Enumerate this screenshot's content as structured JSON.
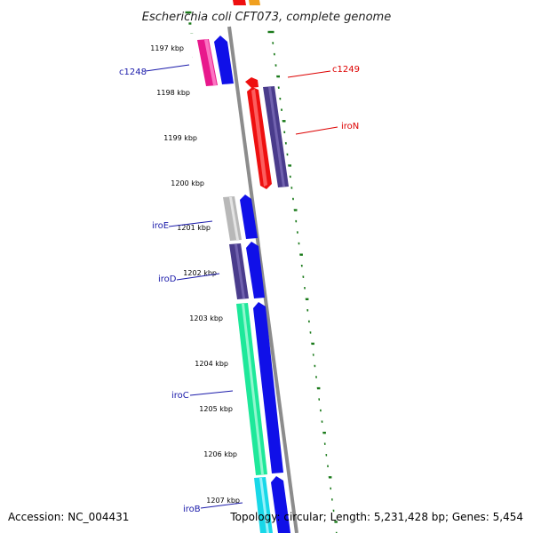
{
  "title": "Escherichia coli CFT073, complete genome",
  "footer": {
    "accession": "Accession: NC_004431",
    "topology": "Topology: circular; Length: 5,231,428 bp; Genes: 5,454"
  },
  "ticks": [
    "1197 kbp",
    "1198 kbp",
    "1199 kbp",
    "1200 kbp",
    "1201 kbp",
    "1202 kbp",
    "1203 kbp",
    "1204 kbp",
    "1205 kbp",
    "1206 kbp",
    "1207 kbp"
  ],
  "genes": [
    {
      "name": "c1248",
      "color": "#1a1aaa"
    },
    {
      "name": "c1249",
      "color": "#dd0000"
    },
    {
      "name": "iroN",
      "color": "#dd0000"
    },
    {
      "name": "iroE",
      "color": "#1a1aaa"
    },
    {
      "name": "iroD",
      "color": "#1a1aaa"
    },
    {
      "name": "iroC",
      "color": "#1a1aaa"
    },
    {
      "name": "iroB",
      "color": "#1a1aaa"
    }
  ],
  "colors": {
    "backbone": "#8c8c8c",
    "tick_green": "#1a7a1a",
    "magenta": "#e8188c",
    "blue": "#1010e8",
    "red": "#ee1010",
    "purple": "#4a3c8c",
    "grey": "#b8b8b8",
    "teal": "#1ee89a",
    "cyan": "#18d8e8",
    "orange": "#f0a020"
  }
}
